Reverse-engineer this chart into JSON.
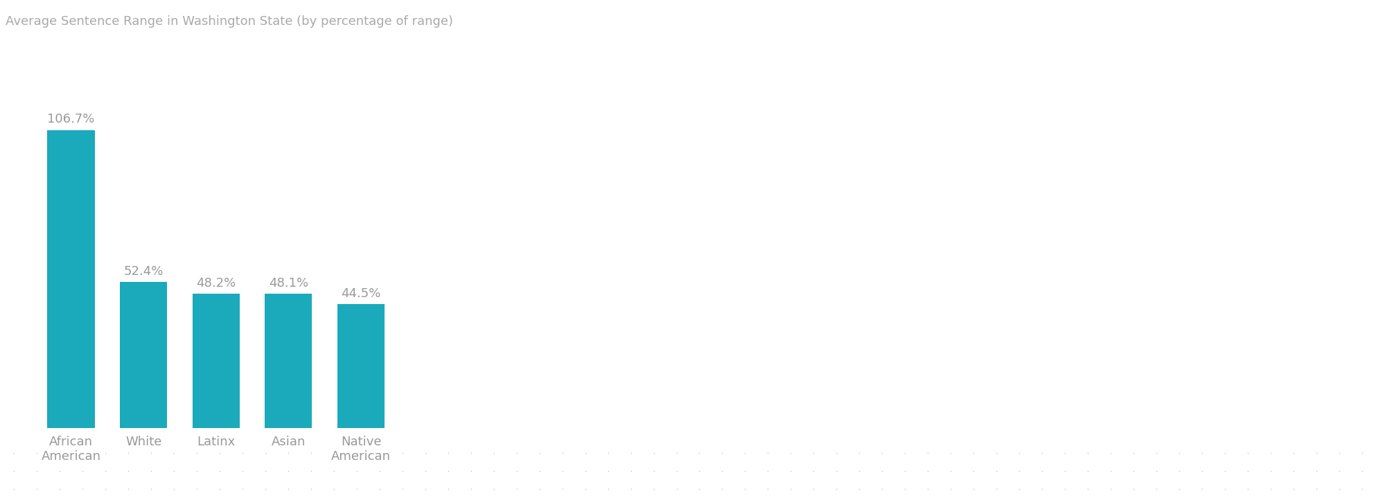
{
  "title": "Average Sentence Range in Washington State (by percentage of range)",
  "categories": [
    "African\nAmerican",
    "White",
    "Latinx",
    "Asian",
    "Native\nAmerican"
  ],
  "values": [
    106.7,
    52.4,
    48.2,
    48.1,
    44.5
  ],
  "labels": [
    "106.7%",
    "52.4%",
    "48.2%",
    "48.1%",
    "44.5%"
  ],
  "bar_color": "#1aaabb",
  "title_bg_color": "#111111",
  "title_text_color": "#aaaaaa",
  "label_text_color": "#999999",
  "axis_text_color": "#999999",
  "background_color": "#ffffff",
  "bar_width": 0.65,
  "ylim": [
    0,
    130
  ],
  "xlim_max": 18,
  "title_fontsize": 13,
  "label_fontsize": 13,
  "tick_fontsize": 13,
  "dot_color": "#cccccc",
  "dot_rows": 3,
  "dot_cols": 60
}
